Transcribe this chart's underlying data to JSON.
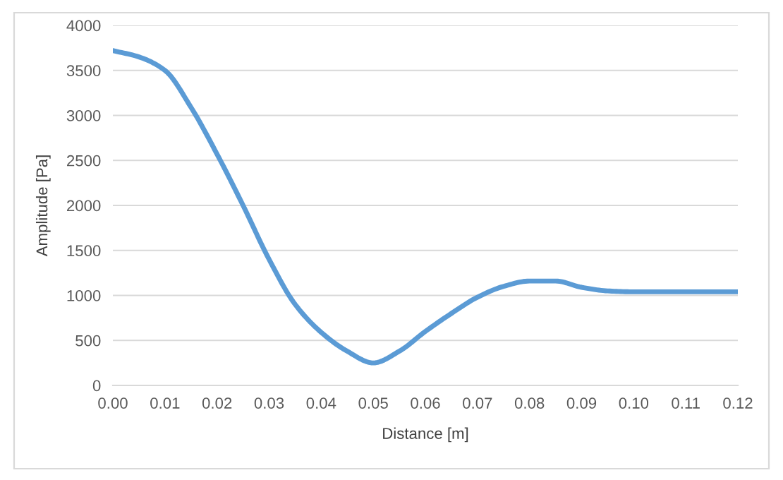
{
  "chart_data": {
    "type": "line",
    "xlabel": "Distance [m]",
    "ylabel": "Amplitude [Pa]",
    "x": [
      0,
      0.005,
      0.01,
      0.015,
      0.02,
      0.025,
      0.03,
      0.035,
      0.04,
      0.045,
      0.05,
      0.055,
      0.06,
      0.065,
      0.07,
      0.075,
      0.08,
      0.085,
      0.09,
      0.095,
      0.1,
      0.105,
      0.11,
      0.115,
      0.12
    ],
    "series": [
      {
        "color": "#5b9bd5",
        "values": [
          3720,
          3650,
          3500,
          3090,
          2570,
          2000,
          1400,
          900,
          590,
          380,
          250,
          380,
          600,
          800,
          980,
          1100,
          1160,
          1160,
          1090,
          1050,
          1040,
          1040,
          1040,
          1040,
          1040
        ]
      }
    ],
    "xlim": [
      0,
      0.12
    ],
    "xticks": [
      {
        "value": 0,
        "label": "0.00"
      },
      {
        "value": 0.01,
        "label": "0.01"
      },
      {
        "value": 0.02,
        "label": "0.02"
      },
      {
        "value": 0.03,
        "label": "0.03"
      },
      {
        "value": 0.04,
        "label": "0.04"
      },
      {
        "value": 0.05,
        "label": "0.05"
      },
      {
        "value": 0.06,
        "label": "0.06"
      },
      {
        "value": 0.07,
        "label": "0.07"
      },
      {
        "value": 0.08,
        "label": "0.08"
      },
      {
        "value": 0.09,
        "label": "0.09"
      },
      {
        "value": 0.1,
        "label": "0.10"
      },
      {
        "value": 0.11,
        "label": "0.11"
      },
      {
        "value": 0.12,
        "label": "0.12"
      }
    ],
    "ylim": [
      0,
      4000
    ],
    "yticks": [
      0,
      500,
      1000,
      1500,
      2000,
      2500,
      3000,
      3500,
      4000
    ],
    "grid": "y",
    "marker": "none",
    "line_style": "solid"
  }
}
